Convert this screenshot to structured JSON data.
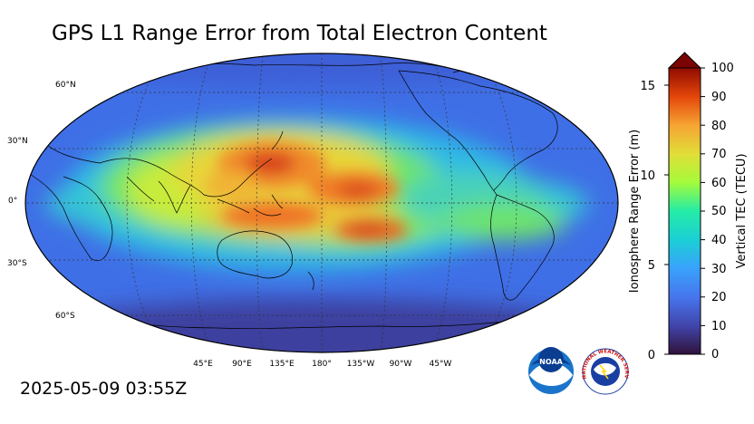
{
  "title": "GPS L1 Range Error from Total Electron Content",
  "timestamp": "2025-05-09 03:55Z",
  "map": {
    "lat_labels": [
      "60°N",
      "30°N",
      "0°",
      "30°S",
      "60°S"
    ],
    "lon_labels": [
      "45°E",
      "90°E",
      "135°E",
      "180°",
      "135°W",
      "90°W",
      "45°W"
    ]
  },
  "colorbar": {
    "right_label": "Vertical TEC (TECU)",
    "right_ticks": [
      "0",
      "10",
      "20",
      "30",
      "40",
      "50",
      "60",
      "70",
      "80",
      "90",
      "100"
    ],
    "left_label": "Ionosphere Range Error (m)",
    "left_ticks": [
      "0",
      "5",
      "10",
      "15"
    ]
  },
  "logos": {
    "noaa": "NOAA",
    "nws": "NATIONAL WEATHER SERVICE"
  },
  "colors": {
    "low": "#30123b",
    "blue": "#3e7bf5",
    "cyan": "#1ae4b6",
    "green": "#a4fc3c",
    "yellow": "#f9c932",
    "orange": "#f16623",
    "high": "#7a0403"
  }
}
